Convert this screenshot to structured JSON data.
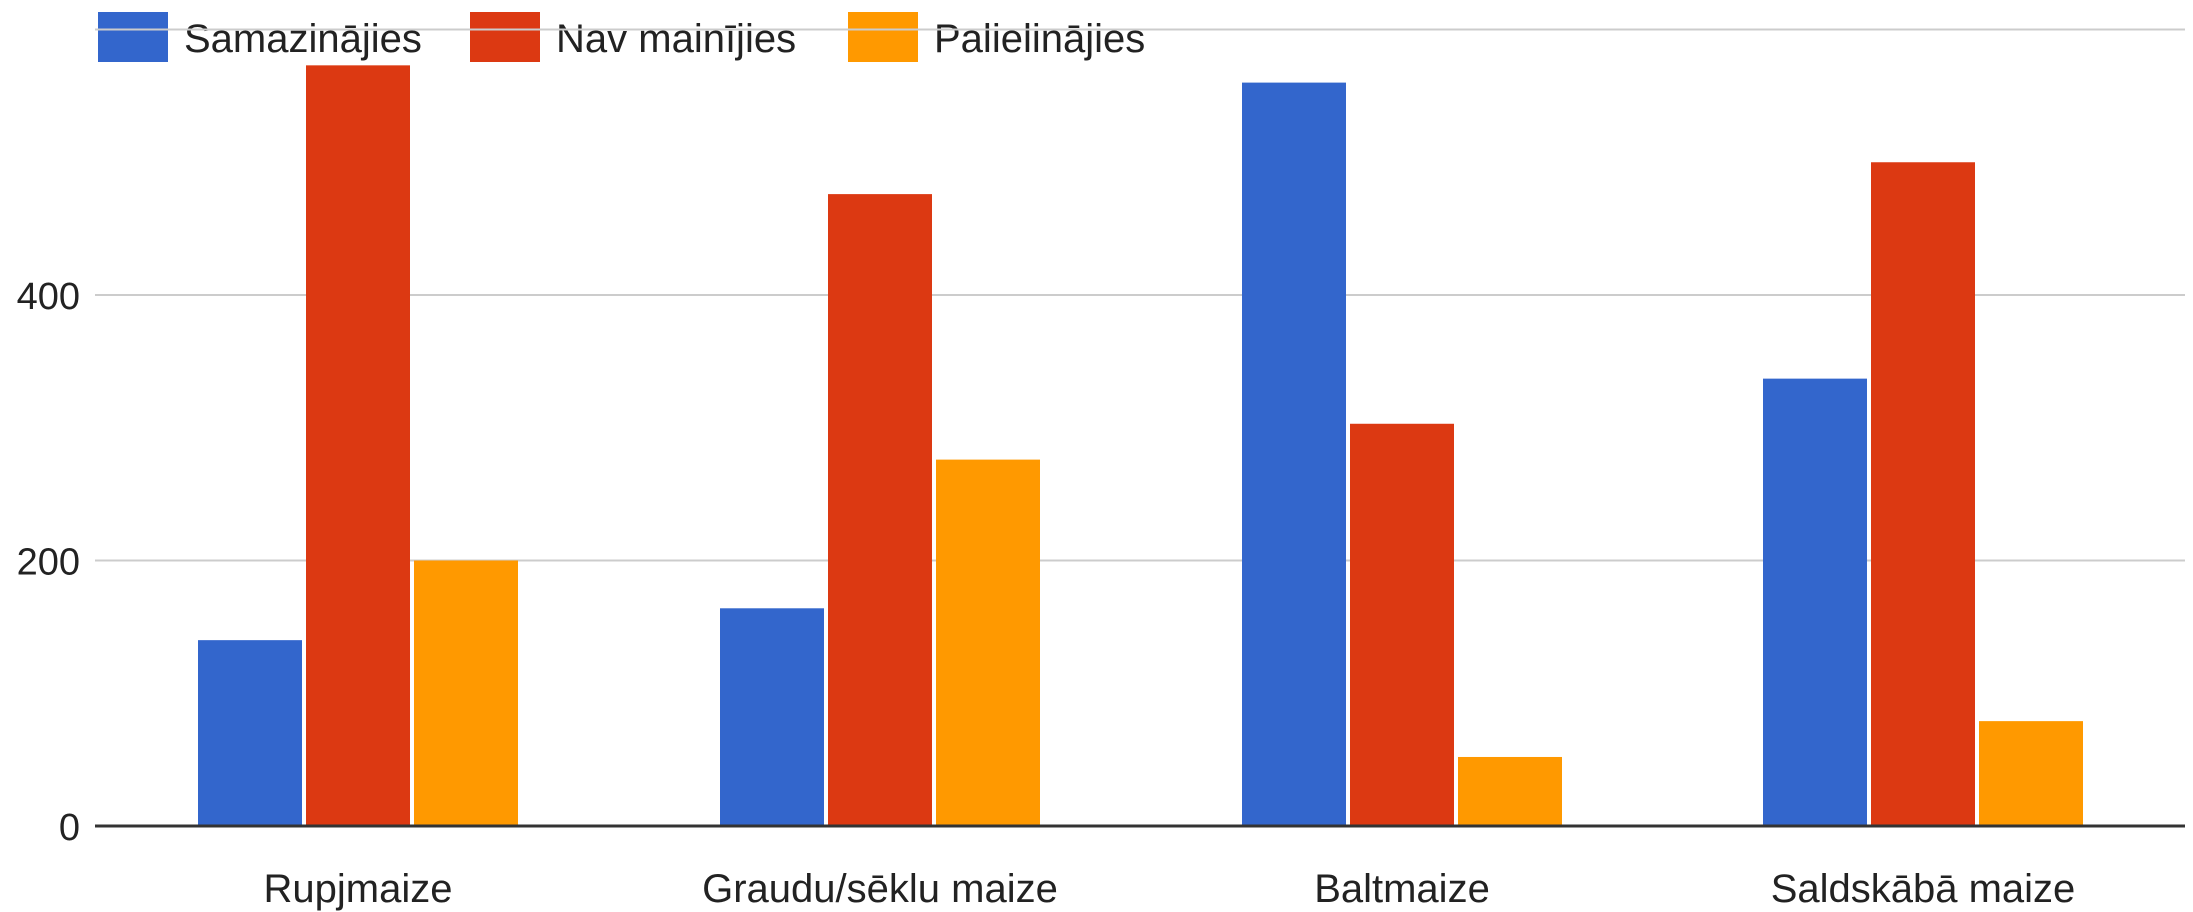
{
  "chart_data": {
    "type": "bar",
    "categories": [
      "Rupjmaize",
      "Graudu/sēklu maize",
      "Baltmaize",
      "Saldskābā maize"
    ],
    "series": [
      {
        "name": "Samazinājies",
        "color": "#3366cc",
        "values": [
          140,
          164,
          560,
          337
        ]
      },
      {
        "name": "Nav mainījies",
        "color": "#dc3912",
        "values": [
          573,
          476,
          303,
          500
        ]
      },
      {
        "name": "Palielinājies",
        "color": "#ff9900",
        "values": [
          200,
          276,
          52,
          79
        ]
      }
    ],
    "yticks": [
      0,
      200,
      400
    ],
    "ylim": [
      0,
      620
    ],
    "title": "",
    "xlabel": "",
    "ylabel": "",
    "grid": true,
    "legend_position": "top-left"
  }
}
